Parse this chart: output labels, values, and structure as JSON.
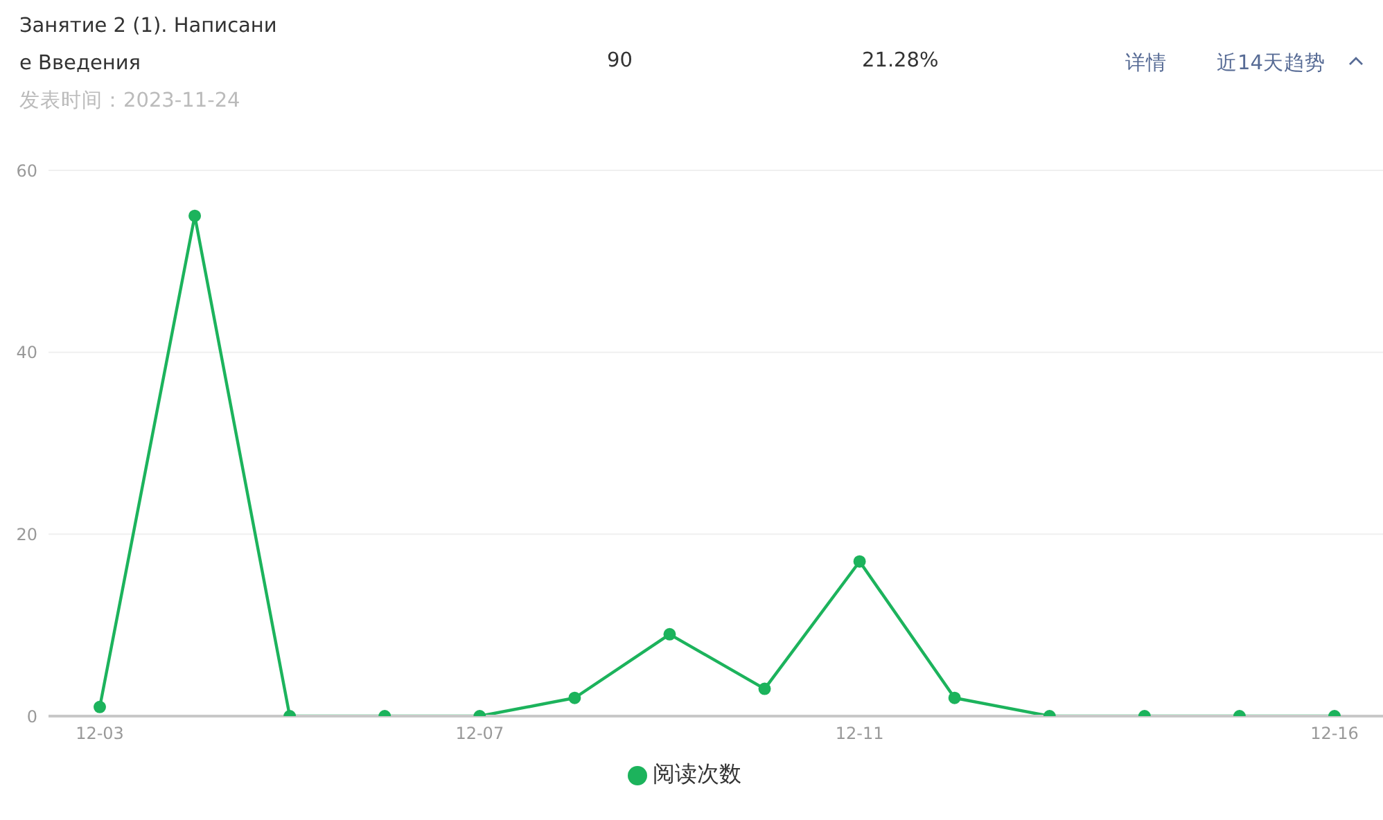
{
  "chart_data": {
    "type": "line",
    "title": "Занятие 2 (1). Написание Введения",
    "subtitle": "发表时间：2023-11-24",
    "annotations": [
      "90",
      "21.28%",
      "详情",
      "近14天趋势"
    ],
    "categories": [
      "12-03",
      null,
      null,
      null,
      "12-07",
      null,
      null,
      null,
      "12-11",
      null,
      null,
      null,
      null,
      "12-16"
    ],
    "series": [
      {
        "name": "阅读次数",
        "color": "#1cb35c",
        "values": [
          1,
          55,
          0,
          0,
          0,
          2,
          9,
          3,
          17,
          2,
          0,
          0,
          0,
          0
        ]
      }
    ],
    "ylim": [
      0,
      60
    ],
    "yticks": [
      0,
      20,
      40,
      60
    ],
    "grid": "y",
    "legend": "bottom",
    "marker": "circle"
  }
}
